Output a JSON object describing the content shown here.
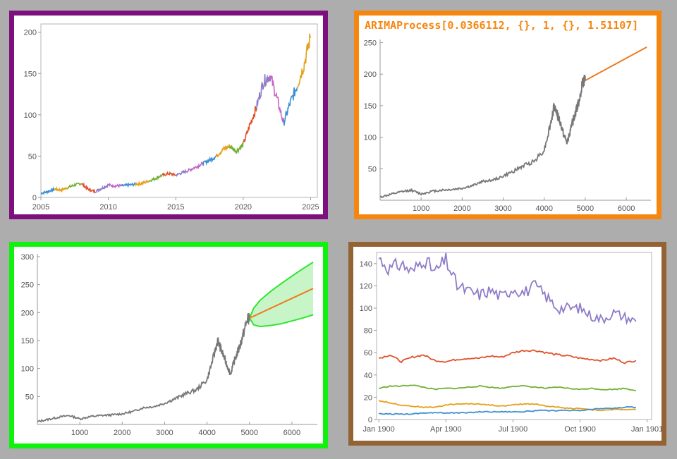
{
  "colors": {
    "border_top_left": "#7d0f7f",
    "border_top_right": "#f7860f",
    "border_bottom_left": "#0ef20e",
    "border_bottom_right": "#946333",
    "history_line": "#777777",
    "forecast_line": "#ee7a1f",
    "band_fill": "#c8f5c8",
    "band_edge": "#2de62d",
    "palette": [
      "#3d8fd1",
      "#e6a019",
      "#70b033",
      "#e0512c",
      "#8e7cc8",
      "#c465c4"
    ]
  },
  "chart_data": [
    {
      "type": "line",
      "title": "",
      "xlabel": "",
      "ylabel": "",
      "xlim": [
        2005,
        2025.5
      ],
      "ylim": [
        0,
        210
      ],
      "x_ticks": [
        "2005",
        "2010",
        "2015",
        "2020",
        "2025"
      ],
      "y_ticks": [
        "0",
        "50",
        "100",
        "150",
        "200"
      ],
      "note": "daily price series, colored in yearly segments",
      "x": [
        2005.0,
        2005.5,
        2006.0,
        2006.5,
        2007.0,
        2007.5,
        2008.0,
        2008.5,
        2009.0,
        2009.5,
        2010.0,
        2010.5,
        2011.0,
        2011.5,
        2012.0,
        2012.5,
        2013.0,
        2013.5,
        2014.0,
        2014.5,
        2015.0,
        2015.5,
        2016.0,
        2016.5,
        2017.0,
        2017.5,
        2018.0,
        2018.5,
        2019.0,
        2019.5,
        2020.0,
        2020.5,
        2021.0,
        2021.5,
        2022.0,
        2022.5,
        2023.0,
        2023.5,
        2024.0,
        2024.5,
        2025.0
      ],
      "values": [
        5,
        7,
        10,
        9,
        12,
        15,
        17,
        10,
        7,
        11,
        15,
        14,
        14,
        15,
        16,
        17,
        20,
        23,
        27,
        29,
        27,
        30,
        33,
        37,
        41,
        45,
        50,
        58,
        62,
        56,
        64,
        88,
        110,
        140,
        148,
        120,
        90,
        115,
        135,
        160,
        195
      ]
    },
    {
      "type": "line",
      "title": "ARIMAProcess[0.0366112, {}, 1, {}, 1.51107]",
      "xlabel": "",
      "ylabel": "",
      "xlim": [
        0,
        6600
      ],
      "ylim": [
        0,
        255
      ],
      "x_ticks": [
        "1000",
        "2000",
        "3000",
        "4000",
        "5000",
        "6000"
      ],
      "y_ticks": [
        "50",
        "100",
        "150",
        "200",
        "250"
      ],
      "series": [
        {
          "x": [
            0,
            250,
            500,
            750,
            1000,
            1250,
            1500,
            1750,
            2000,
            2250,
            2500,
            2750,
            3000,
            3250,
            3500,
            3750,
            4000,
            4150,
            4250,
            4350,
            4450,
            4550,
            4650,
            4750,
            4850,
            4950,
            5000
          ],
          "values": [
            5,
            9,
            13,
            16,
            10,
            14,
            16,
            17,
            19,
            23,
            30,
            32,
            38,
            46,
            55,
            62,
            80,
            120,
            150,
            130,
            110,
            90,
            115,
            135,
            160,
            188,
            190
          ]
        },
        {
          "x": [
            5000,
            6500
          ],
          "values": [
            190,
            243
          ]
        }
      ]
    },
    {
      "type": "line",
      "title": "",
      "xlabel": "",
      "ylabel": "",
      "xlim": [
        0,
        6600
      ],
      "ylim": [
        0,
        305
      ],
      "x_ticks": [
        "1000",
        "2000",
        "3000",
        "4000",
        "5000",
        "6000"
      ],
      "y_ticks": [
        "50",
        "100",
        "150",
        "200",
        "250",
        "300"
      ],
      "series": [
        {
          "x": [
            0,
            250,
            500,
            750,
            1000,
            1250,
            1500,
            1750,
            2000,
            2250,
            2500,
            2750,
            3000,
            3250,
            3500,
            3750,
            4000,
            4150,
            4250,
            4350,
            4450,
            4550,
            4650,
            4750,
            4850,
            4950,
            5000
          ],
          "values": [
            5,
            9,
            13,
            16,
            10,
            14,
            16,
            17,
            19,
            23,
            30,
            32,
            38,
            46,
            55,
            62,
            80,
            120,
            150,
            130,
            110,
            90,
            115,
            135,
            160,
            188,
            190
          ]
        },
        {
          "x": [
            5000,
            6500
          ],
          "values": [
            190,
            243
          ]
        }
      ],
      "band": {
        "x": [
          5000,
          5100,
          5250,
          5500,
          5750,
          6000,
          6250,
          6500
        ],
        "lower": [
          190,
          178,
          175,
          177,
          180,
          185,
          190,
          196
        ],
        "upper": [
          190,
          208,
          222,
          238,
          252,
          265,
          278,
          290
        ]
      }
    },
    {
      "type": "line",
      "title": "",
      "xlabel": "",
      "ylabel": "",
      "xlim": [
        -0.1,
        12.2
      ],
      "ylim": [
        0,
        150
      ],
      "x_ticks": [
        "Jan 1900",
        "Apr 1900",
        "Jul 1900",
        "Oct 1900",
        "Jan 1901"
      ],
      "x_tick_positions": [
        0,
        3,
        6,
        9,
        12
      ],
      "y_ticks": [
        "0",
        "20",
        "40",
        "60",
        "80",
        "100",
        "120",
        "140"
      ],
      "x": [
        0,
        0.5,
        1,
        1.5,
        2,
        2.5,
        3,
        3.5,
        4,
        4.5,
        5,
        5.5,
        6,
        6.5,
        7,
        7.5,
        8,
        8.5,
        9,
        9.5,
        10,
        10.5,
        11,
        11.5
      ],
      "series": [
        {
          "values": [
            145,
            135,
            140,
            132,
            145,
            132,
            143,
            120,
            115,
            112,
            116,
            110,
            118,
            114,
            120,
            110,
            100,
            100,
            100,
            93,
            90,
            96,
            92,
            88
          ]
        },
        {
          "values": [
            55,
            58,
            52,
            56,
            58,
            53,
            52,
            54,
            55,
            55,
            57,
            56,
            60,
            62,
            62,
            60,
            58,
            57,
            55,
            54,
            53,
            55,
            51,
            53
          ]
        },
        {
          "values": [
            28,
            30,
            30,
            31,
            29,
            27,
            28,
            28,
            29,
            30,
            29,
            28,
            30,
            30,
            29,
            28,
            29,
            28,
            27,
            28,
            27,
            27,
            28,
            26
          ]
        },
        {
          "values": [
            17,
            15,
            13,
            12,
            11,
            11,
            13,
            14,
            14,
            14,
            13,
            12,
            13,
            14,
            14,
            12,
            11,
            10,
            10,
            9,
            8,
            9,
            9,
            9
          ]
        },
        {
          "values": [
            5,
            5,
            5,
            5,
            6,
            6,
            6,
            6,
            6,
            7,
            7,
            7,
            7,
            7,
            8,
            8,
            8,
            8,
            8,
            9,
            10,
            10,
            11,
            11
          ]
        }
      ]
    }
  ]
}
